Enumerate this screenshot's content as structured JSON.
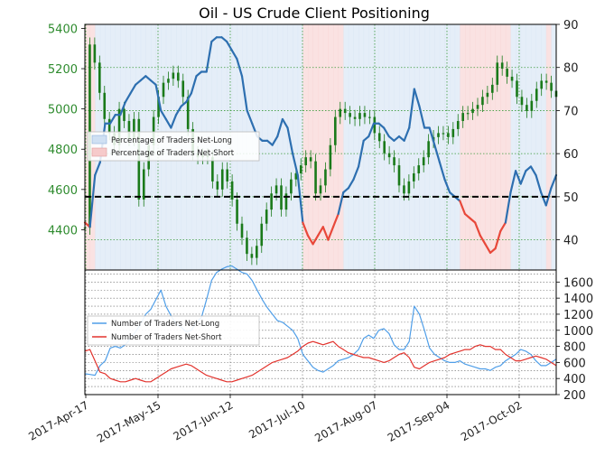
{
  "chart_data": {
    "title": "Oil - US Crude Client Positioning",
    "x_tick_labels": [
      "2017-Apr-17",
      "2017-May-15",
      "2017-Jun-12",
      "2017-Jul-10",
      "2017-Aug-07",
      "2017-Sep-04",
      "2017-Oct-02"
    ],
    "colors": {
      "price_axis": "#2e8b2e",
      "net_long_fill": "#cfe0f3",
      "net_short_fill": "#f6caca",
      "pct_long_line": "#2d6fb0",
      "pct_short_line": "#e8483a",
      "candle": "#1a7a1a",
      "traders_long_line": "#4f9ee8",
      "traders_short_line": "#e2332d",
      "grid": "#3a9a3a"
    },
    "top_panel": {
      "type": "line",
      "left_axis": {
        "ticks": [
          4400,
          4600,
          4800,
          5000,
          5200,
          5400
        ],
        "ylim": [
          4200,
          5420
        ]
      },
      "right_axis": {
        "ticks": [
          40,
          50,
          60,
          70,
          80,
          90
        ],
        "ylim": [
          33,
          90
        ]
      },
      "reference_line_value": 50,
      "legend": {
        "placement": "center-left",
        "items": [
          "Percentage of Traders Net-Long",
          "Percentage of Traders Net-Short"
        ]
      },
      "price_candles_approx": [
        4410,
        5320,
        5230,
        5080,
        4950,
        4880,
        4820,
        5000,
        4940,
        4850,
        4950,
        4550,
        4700,
        4820,
        4960,
        5060,
        5130,
        5150,
        5180,
        5140,
        5060,
        4900,
        4780,
        4760,
        4770,
        4760,
        4640,
        4600,
        4700,
        4640,
        4550,
        4430,
        4360,
        4280,
        4260,
        4320,
        4430,
        4500,
        4580,
        4620,
        4500,
        4580,
        4650,
        4680,
        4720,
        4760,
        4740,
        4580,
        4620,
        4700,
        4820,
        4960,
        5000,
        4980,
        4960,
        4950,
        4980,
        4960,
        4960,
        4880,
        4840,
        4780,
        4760,
        4720,
        4620,
        4580,
        4640,
        4680,
        4720,
        4760,
        4840,
        4860,
        4880,
        4880,
        4860,
        4900,
        4940,
        4980,
        4980,
        5000,
        5020,
        5060,
        5080,
        5120,
        5230,
        5200,
        5160,
        5140,
        5060,
        5020,
        4990,
        5040,
        5100,
        5140,
        5130,
        5090,
        5060
      ]
    },
    "bottom_panel": {
      "type": "line",
      "y_axis": {
        "ticks": [
          200,
          400,
          600,
          800,
          1000,
          1200,
          1400,
          1600
        ],
        "ylim": [
          200,
          1750
        ]
      },
      "legend": {
        "placement": "center-left",
        "items": [
          "Number of Traders Net-Long",
          "Number of Traders Net-Short"
        ]
      }
    },
    "series": [
      {
        "name": "Percentage of Traders Net-Long",
        "values": [
          44,
          43,
          55,
          58,
          67,
          67,
          69,
          69,
          72,
          74,
          76,
          77,
          78,
          77,
          76,
          70,
          68,
          66,
          69,
          71,
          72,
          74,
          78,
          79,
          79,
          86,
          87,
          87,
          86,
          84,
          82,
          78,
          70,
          67,
          64,
          63,
          63,
          62,
          64,
          68,
          66,
          60,
          55,
          44,
          41,
          39,
          41,
          43,
          40,
          43,
          46,
          51,
          52,
          54,
          57,
          63,
          64,
          67,
          67,
          66,
          64,
          63,
          64,
          63,
          66,
          75,
          71,
          66,
          66,
          62,
          58,
          54,
          51,
          50,
          49,
          46,
          45,
          44,
          41,
          39,
          37,
          38,
          42,
          44,
          51,
          56,
          53,
          56,
          57,
          55,
          51,
          48,
          52,
          55
        ]
      },
      {
        "name": "Number of Traders Net-Long",
        "values": [
          460,
          450,
          440,
          560,
          620,
          780,
          800,
          780,
          820,
          900,
          980,
          1080,
          1200,
          1260,
          1380,
          1500,
          1300,
          1180,
          1080,
          1040,
          980,
          1000,
          1100,
          1160,
          1380,
          1620,
          1720,
          1760,
          1790,
          1800,
          1760,
          1720,
          1700,
          1620,
          1500,
          1380,
          1280,
          1200,
          1120,
          1100,
          1050,
          1000,
          900,
          700,
          620,
          540,
          500,
          480,
          520,
          560,
          620,
          640,
          660,
          700,
          760,
          900,
          940,
          900,
          1000,
          1020,
          960,
          820,
          760,
          760,
          860,
          1300,
          1200,
          1000,
          780,
          700,
          660,
          620,
          600,
          600,
          620,
          580,
          560,
          540,
          520,
          520,
          500,
          540,
          560,
          620,
          660,
          700,
          760,
          740,
          700,
          620,
          560,
          560,
          600,
          640
        ]
      },
      {
        "name": "Number of Traders Net-Short",
        "values": [
          740,
          760,
          620,
          480,
          460,
          400,
          380,
          360,
          360,
          380,
          400,
          380,
          360,
          360,
          400,
          440,
          480,
          520,
          540,
          560,
          580,
          560,
          520,
          480,
          440,
          420,
          400,
          380,
          360,
          360,
          380,
          400,
          420,
          440,
          480,
          520,
          560,
          600,
          620,
          640,
          660,
          700,
          740,
          800,
          840,
          860,
          840,
          820,
          840,
          860,
          800,
          760,
          720,
          700,
          680,
          660,
          660,
          640,
          620,
          600,
          620,
          660,
          700,
          720,
          660,
          540,
          520,
          560,
          600,
          620,
          640,
          660,
          700,
          720,
          740,
          760,
          760,
          800,
          820,
          800,
          800,
          760,
          760,
          700,
          660,
          620,
          620,
          640,
          660,
          680,
          660,
          640,
          600,
          560
        ]
      }
    ]
  }
}
